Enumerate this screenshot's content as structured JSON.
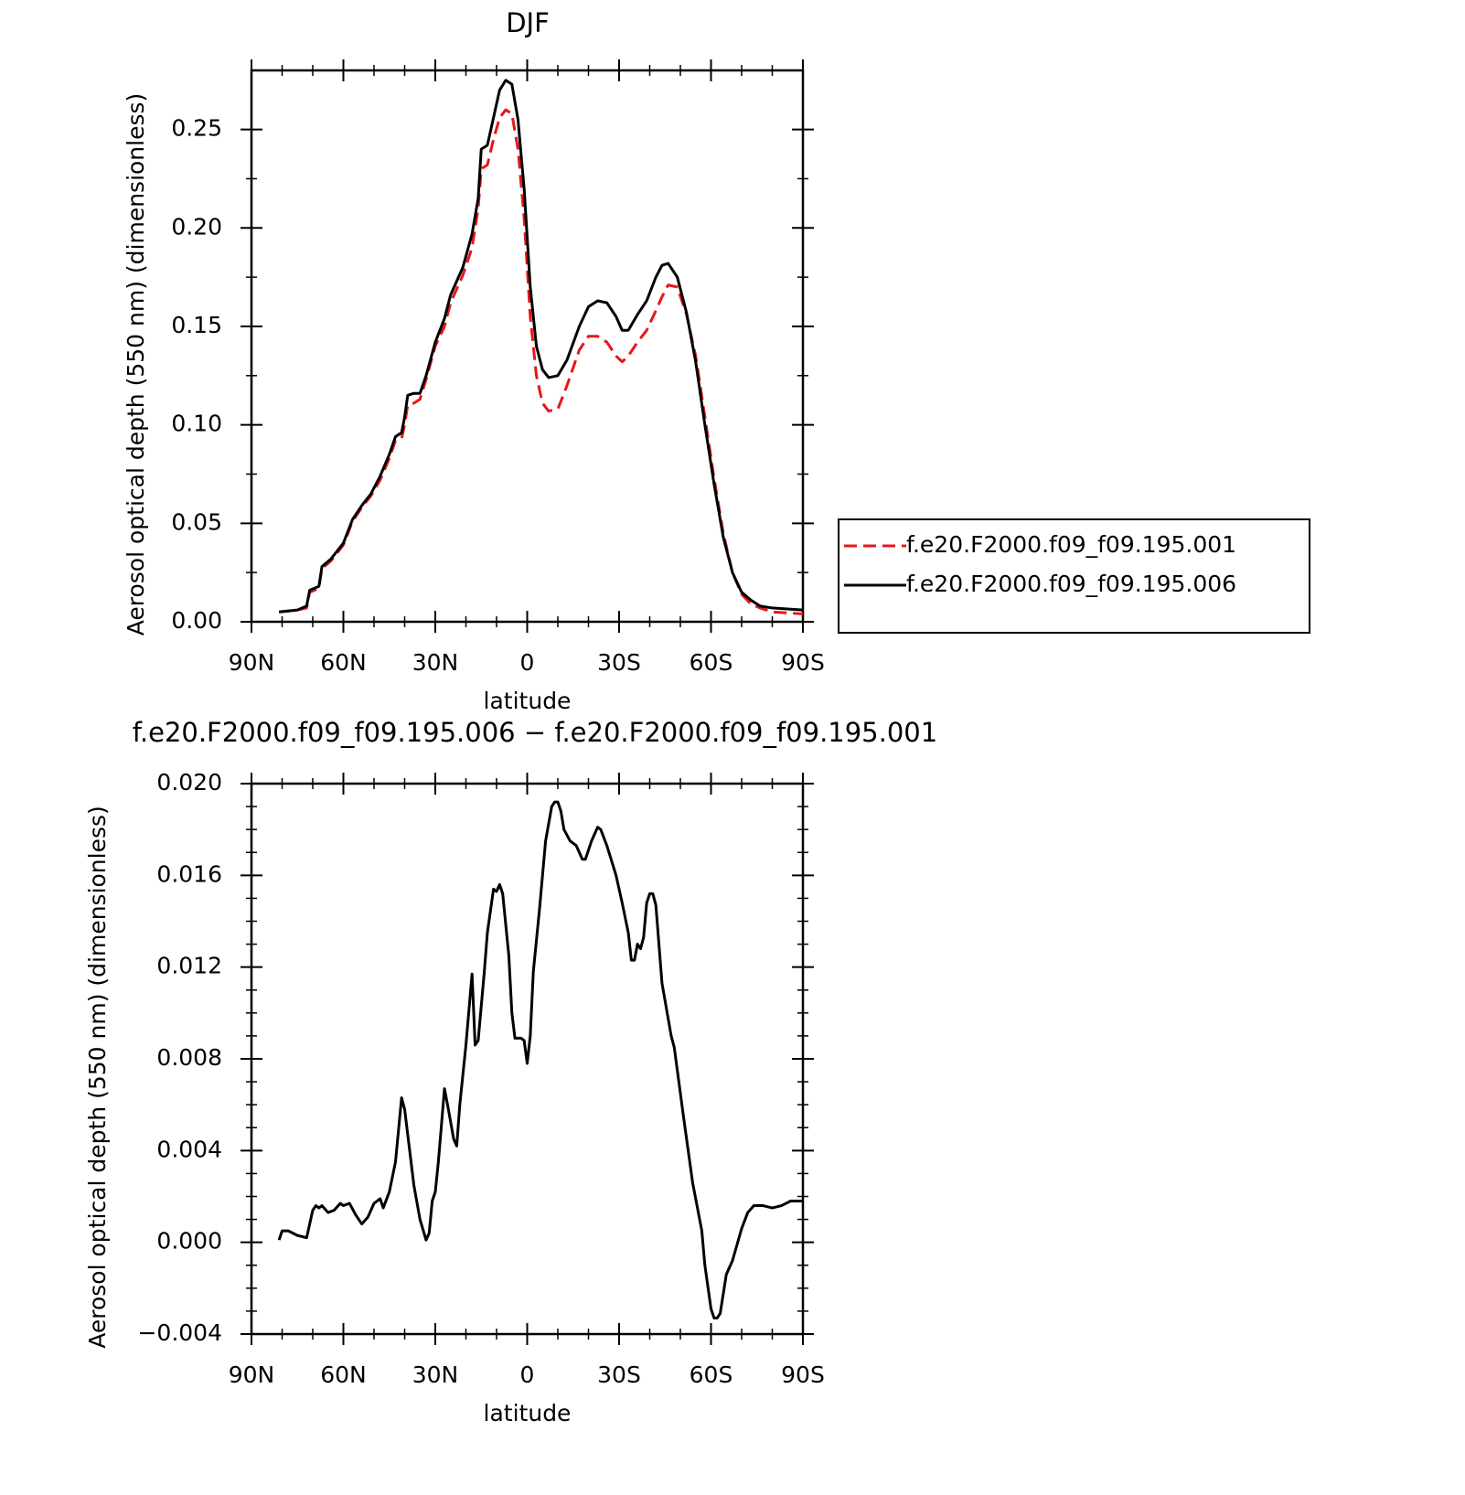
{
  "chart_data": [
    {
      "type": "line",
      "title": "DJF",
      "xlabel": "latitude",
      "ylabel": "Aerosol optical depth (550 nm) (dimensionless)",
      "xlim": [
        90,
        -90
      ],
      "xticks": [
        {
          "value": 90,
          "label": "90N"
        },
        {
          "value": 60,
          "label": "60N"
        },
        {
          "value": 30,
          "label": "30N"
        },
        0,
        {
          "value": -30,
          "label": "30S"
        },
        {
          "value": -60,
          "label": "60S"
        },
        {
          "value": -90,
          "label": "90S"
        }
      ],
      "ylim": [
        0,
        0.28
      ],
      "yticks": [
        {
          "value": 0,
          "label": "0.00"
        },
        {
          "value": 0.05,
          "label": "0.05"
        },
        {
          "value": 0.1,
          "label": "0.10"
        },
        {
          "value": 0.15,
          "label": "0.15"
        },
        {
          "value": 0.2,
          "label": "0.20"
        },
        {
          "value": 0.25,
          "label": "0.25"
        }
      ],
      "legend": "outside-right",
      "x": [
        81,
        75,
        72,
        71,
        68,
        67,
        64,
        60,
        57,
        54,
        51,
        48,
        45,
        43,
        41,
        40,
        39,
        37,
        35,
        33,
        30,
        27,
        25,
        21,
        18,
        16,
        15,
        13,
        11,
        9,
        7,
        5,
        3,
        1,
        -1,
        -3,
        -5,
        -7,
        -10,
        -13,
        -17,
        -20,
        -23,
        -26,
        -29,
        -31,
        -33,
        -36,
        -39,
        -42,
        -44,
        -46,
        -49,
        -52,
        -55,
        -58,
        -61,
        -64,
        -67,
        -70,
        -73,
        -76,
        -80,
        -85,
        -90
      ],
      "series": [
        {
          "name": "f.e20.F2000.f09_f09.195.001",
          "color": "#e8161b",
          "dashed": true,
          "values": [
            0.005,
            0.006,
            0.007,
            0.015,
            0.017,
            0.027,
            0.031,
            0.039,
            0.051,
            0.058,
            0.064,
            0.072,
            0.083,
            0.092,
            0.093,
            0.1,
            0.11,
            0.111,
            0.113,
            0.123,
            0.14,
            0.15,
            0.162,
            0.176,
            0.19,
            0.21,
            0.23,
            0.232,
            0.245,
            0.256,
            0.26,
            0.258,
            0.24,
            0.205,
            0.155,
            0.125,
            0.111,
            0.107,
            0.108,
            0.12,
            0.138,
            0.145,
            0.145,
            0.142,
            0.135,
            0.132,
            0.135,
            0.142,
            0.148,
            0.158,
            0.165,
            0.171,
            0.17,
            0.156,
            0.135,
            0.104,
            0.073,
            0.045,
            0.025,
            0.014,
            0.009,
            0.007,
            0.005,
            0.0045,
            0.004
          ]
        },
        {
          "name": "f.e20.F2000.f09_f09.195.006",
          "color": "#000000",
          "dashed": false,
          "values": [
            0.005,
            0.006,
            0.008,
            0.016,
            0.018,
            0.028,
            0.032,
            0.04,
            0.052,
            0.059,
            0.065,
            0.074,
            0.085,
            0.094,
            0.096,
            0.104,
            0.115,
            0.116,
            0.116,
            0.125,
            0.142,
            0.154,
            0.166,
            0.18,
            0.197,
            0.215,
            0.24,
            0.242,
            0.256,
            0.27,
            0.275,
            0.273,
            0.255,
            0.22,
            0.17,
            0.14,
            0.128,
            0.124,
            0.125,
            0.133,
            0.15,
            0.16,
            0.163,
            0.162,
            0.155,
            0.148,
            0.148,
            0.156,
            0.163,
            0.175,
            0.181,
            0.182,
            0.175,
            0.157,
            0.132,
            0.1,
            0.07,
            0.043,
            0.025,
            0.015,
            0.011,
            0.008,
            0.007,
            0.0065,
            0.006
          ]
        }
      ]
    },
    {
      "type": "line",
      "title": "f.e20.F2000.f09_f09.195.006 − f.e20.F2000.f09_f09.195.001",
      "xlabel": "latitude",
      "ylabel": "Aerosol optical depth (550 nm) (dimensionless)",
      "xlim": [
        90,
        -90
      ],
      "xticks": [
        {
          "value": 90,
          "label": "90N"
        },
        {
          "value": 60,
          "label": "60N"
        },
        {
          "value": 30,
          "label": "30N"
        },
        0,
        {
          "value": -30,
          "label": "30S"
        },
        {
          "value": -60,
          "label": "60S"
        },
        {
          "value": -90,
          "label": "90S"
        }
      ],
      "ylim": [
        -0.004,
        0.02
      ],
      "yticks": [
        {
          "value": -0.004,
          "label": "−0.004"
        },
        {
          "value": 0,
          "label": "0.000"
        },
        {
          "value": 0.004,
          "label": "0.004"
        },
        {
          "value": 0.008,
          "label": "0.008"
        },
        {
          "value": 0.012,
          "label": "0.012"
        },
        {
          "value": 0.016,
          "label": "0.016"
        },
        {
          "value": 0.02,
          "label": "0.020"
        }
      ],
      "x": [
        81,
        80,
        78,
        75,
        72,
        70,
        69,
        68,
        67,
        65,
        63,
        61,
        60,
        58,
        56,
        54,
        52,
        50,
        48,
        47,
        45,
        43,
        41,
        40,
        37,
        35,
        33,
        32,
        31,
        30,
        29,
        27,
        26,
        24,
        23,
        22,
        20,
        18,
        17,
        16,
        14,
        13,
        11,
        10,
        9,
        8,
        6,
        5,
        4,
        2,
        1,
        0,
        -1,
        -2,
        -4,
        -6,
        -8,
        -9,
        -10,
        -11,
        -12,
        -14,
        -16,
        -18,
        -19,
        -21,
        -23,
        -24,
        -26,
        -29,
        -31,
        -33,
        -34,
        -35,
        -36,
        -37,
        -38,
        -39,
        -40,
        -41,
        -42,
        -44,
        -47,
        -48,
        -51,
        -54,
        -57,
        -58,
        -60,
        -61,
        -62,
        -63,
        -65,
        -67,
        -70,
        -72,
        -74,
        -77,
        -80,
        -83,
        -86,
        -90
      ],
      "series": [
        {
          "color": "#000000",
          "dashed": false,
          "values": [
            0.0001,
            0.0005,
            0.0005,
            0.0003,
            0.0002,
            0.0014,
            0.0016,
            0.0015,
            0.0016,
            0.0013,
            0.0014,
            0.0017,
            0.0016,
            0.0017,
            0.0012,
            0.0008,
            0.0011,
            0.0017,
            0.0019,
            0.0015,
            0.0022,
            0.0035,
            0.0063,
            0.0058,
            0.0025,
            0.001,
            0.0001,
            0.0004,
            0.0018,
            0.0022,
            0.0035,
            0.0067,
            0.006,
            0.0045,
            0.0042,
            0.006,
            0.0086,
            0.0117,
            0.0086,
            0.0088,
            0.0118,
            0.0135,
            0.0154,
            0.0153,
            0.0156,
            0.0152,
            0.0125,
            0.01,
            0.0089,
            0.0089,
            0.0088,
            0.0078,
            0.009,
            0.0118,
            0.0145,
            0.0175,
            0.019,
            0.0192,
            0.0192,
            0.0188,
            0.018,
            0.0175,
            0.0173,
            0.0167,
            0.0167,
            0.0175,
            0.0181,
            0.018,
            0.0173,
            0.016,
            0.0148,
            0.0135,
            0.0123,
            0.0123,
            0.013,
            0.0128,
            0.0133,
            0.0148,
            0.0152,
            0.0152,
            0.0147,
            0.0113,
            0.009,
            0.0085,
            0.0055,
            0.0026,
            0.0005,
            -0.001,
            -0.0029,
            -0.0033,
            -0.0033,
            -0.0031,
            -0.0014,
            -0.0008,
            0.0006,
            0.0013,
            0.0016,
            0.0016,
            0.0015,
            0.0016,
            0.0018,
            0.0018
          ]
        }
      ]
    }
  ]
}
